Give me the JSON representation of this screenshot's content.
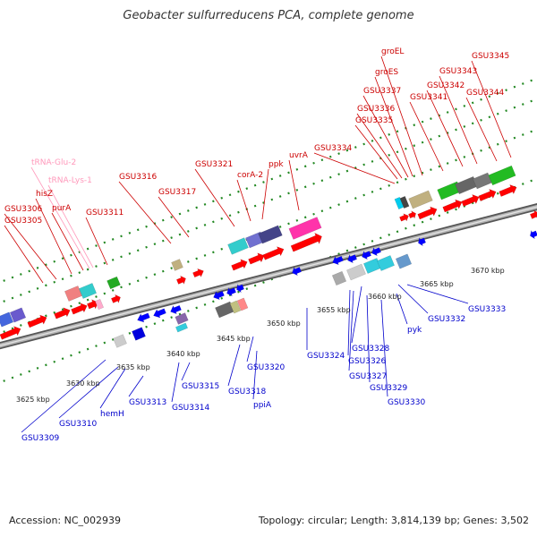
{
  "title": "Geobacter sulfurreducens PCA, complete genome",
  "footer": {
    "accession": "Accession: NC_002939",
    "topology": "Topology: circular; Length: 3,814,139 bp; Genes: 3,502"
  },
  "colors": {
    "label_forward": "#cc0000",
    "label_reverse": "#0000cc",
    "label_trna": "#ff99bb",
    "backbone": "#999999",
    "dots": "#228822"
  },
  "ticks": [
    {
      "label": "3625 kbp"
    },
    {
      "label": "3630 kbp"
    },
    {
      "label": "3635 kbp"
    },
    {
      "label": "3640 kbp"
    },
    {
      "label": "3645 kbp"
    },
    {
      "label": "3650 kbp"
    },
    {
      "label": "3655 kbp"
    },
    {
      "label": "3660 kbp"
    },
    {
      "label": "3665 kbp"
    },
    {
      "label": "3670 kbp"
    }
  ],
  "forward_labels": [
    {
      "text": "GSU3305"
    },
    {
      "text": "GSU3306"
    },
    {
      "text": "hisZ"
    },
    {
      "text": "purA"
    },
    {
      "text": "GSU3311"
    },
    {
      "text": "GSU3316"
    },
    {
      "text": "GSU3317"
    },
    {
      "text": "GSU3321"
    },
    {
      "text": "corA-2"
    },
    {
      "text": "ppk"
    },
    {
      "text": "uvrA"
    },
    {
      "text": "GSU3334"
    },
    {
      "text": "GSU3335"
    },
    {
      "text": "GSU3336"
    },
    {
      "text": "GSU3337"
    },
    {
      "text": "groES"
    },
    {
      "text": "groEL"
    },
    {
      "text": "GSU3341"
    },
    {
      "text": "GSU3342"
    },
    {
      "text": "GSU3343"
    },
    {
      "text": "GSU3344"
    },
    {
      "text": "GSU3345"
    }
  ],
  "trna_labels": [
    {
      "text": "tRNA-Glu-2"
    },
    {
      "text": "tRNA-Lys-1"
    }
  ],
  "reverse_labels": [
    {
      "text": "GSU3309"
    },
    {
      "text": "GSU3310"
    },
    {
      "text": "hemH"
    },
    {
      "text": "GSU3313"
    },
    {
      "text": "GSU3314"
    },
    {
      "text": "GSU3315"
    },
    {
      "text": "GSU3318"
    },
    {
      "text": "ppiA"
    },
    {
      "text": "GSU3320"
    },
    {
      "text": "GSU3324"
    },
    {
      "text": "GSU3326"
    },
    {
      "text": "GSU3327"
    },
    {
      "text": "GSU3328"
    },
    {
      "text": "GSU3329"
    },
    {
      "text": "GSU3330"
    },
    {
      "text": "pyk"
    },
    {
      "text": "GSU3332"
    },
    {
      "text": "GSU3333"
    }
  ]
}
